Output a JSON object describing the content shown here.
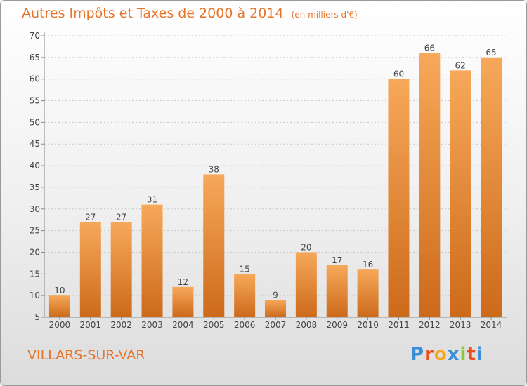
{
  "title": {
    "main": "Autres Impôts et Taxes de 2000 à 2014",
    "unit": "(en milliers d'€)"
  },
  "location": "VILLARS-SUR-VAR",
  "logo": {
    "letters": [
      "P",
      "r",
      "o",
      "x",
      "i",
      "t",
      "i"
    ],
    "colors": [
      "#3a8fd8",
      "#e94e1b",
      "#f4a522",
      "#3a8fd8",
      "#8cc63f",
      "#e94e1b",
      "#3a8fd8"
    ]
  },
  "colors": {
    "bar_light": "#f7a85a",
    "bar_dark": "#cc6a1a",
    "axis": "#888888",
    "grid": "#c8c8c8",
    "text": "#444444",
    "accent": "#e8742a"
  },
  "chart_data": {
    "type": "bar",
    "categories": [
      "2000",
      "2001",
      "2002",
      "2003",
      "2004",
      "2005",
      "2006",
      "2007",
      "2008",
      "2009",
      "2010",
      "2011",
      "2012",
      "2013",
      "2014"
    ],
    "values": [
      10,
      27,
      27,
      31,
      12,
      38,
      15,
      9,
      20,
      17,
      16,
      60,
      66,
      62,
      65
    ],
    "title": "Autres Impôts et Taxes de 2000 à 2014",
    "xlabel": "",
    "ylabel": "",
    "ylim": [
      5,
      70
    ],
    "yticks": [
      5,
      10,
      15,
      20,
      25,
      30,
      35,
      40,
      45,
      50,
      55,
      60,
      65,
      70
    ],
    "grid": true,
    "data_labels": true
  }
}
